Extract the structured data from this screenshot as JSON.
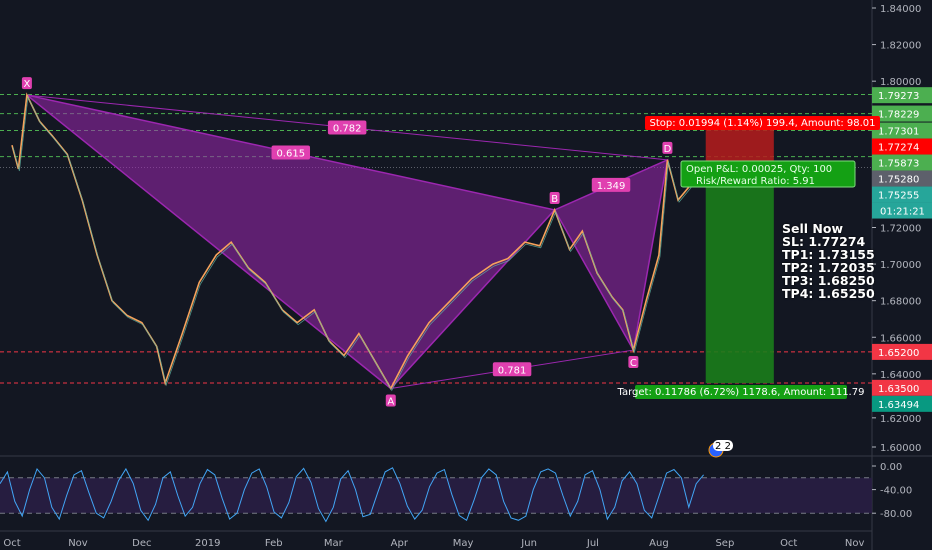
{
  "chart_data": {
    "type": "line",
    "symbol_note": "",
    "price_axis": {
      "ylim": [
        1.59,
        1.845
      ],
      "ticks": [
        "1.84000",
        "1.82000",
        "1.80000",
        "1.72000",
        "1.70000",
        "1.68000",
        "1.66000",
        "1.64000",
        "1.62000",
        "1.60000"
      ]
    },
    "x_ticks": [
      {
        "label": "Oct",
        "date": "2018-10-01"
      },
      {
        "label": "Nov",
        "date": "2018-11-01"
      },
      {
        "label": "Dec",
        "date": "2018-12-01"
      },
      {
        "label": "2019",
        "date": "2019-01-01"
      },
      {
        "label": "Feb",
        "date": "2019-02-01"
      },
      {
        "label": "Mar",
        "date": "2019-03-01"
      },
      {
        "label": "Apr",
        "date": "2019-04-01"
      },
      {
        "label": "May",
        "date": "2019-05-01"
      },
      {
        "label": "Jun",
        "date": "2019-06-01"
      },
      {
        "label": "Jul",
        "date": "2019-07-01"
      },
      {
        "label": "Aug",
        "date": "2019-08-01"
      },
      {
        "label": "Sep",
        "date": "2019-09-01"
      },
      {
        "label": "Oct",
        "date": "2019-10-01"
      },
      {
        "label": "Nov",
        "date": "2019-11-01"
      }
    ],
    "price_series": [
      [
        "2018-10-01",
        1.765
      ],
      [
        "2018-10-04",
        1.752
      ],
      [
        "2018-10-08",
        1.7924
      ],
      [
        "2018-10-14",
        1.778
      ],
      [
        "2018-10-20",
        1.77
      ],
      [
        "2018-10-27",
        1.76
      ],
      [
        "2018-11-03",
        1.735
      ],
      [
        "2018-11-10",
        1.705
      ],
      [
        "2018-11-17",
        1.68
      ],
      [
        "2018-11-24",
        1.672
      ],
      [
        "2018-12-01",
        1.668
      ],
      [
        "2018-12-08",
        1.655
      ],
      [
        "2018-12-12",
        1.635
      ],
      [
        "2018-12-20",
        1.662
      ],
      [
        "2018-12-28",
        1.69
      ],
      [
        "2019-01-05",
        1.705
      ],
      [
        "2019-01-12",
        1.712
      ],
      [
        "2019-01-20",
        1.698
      ],
      [
        "2019-01-28",
        1.69
      ],
      [
        "2019-02-05",
        1.675
      ],
      [
        "2019-02-12",
        1.668
      ],
      [
        "2019-02-20",
        1.675
      ],
      [
        "2019-02-27",
        1.658
      ],
      [
        "2019-03-06",
        1.65
      ],
      [
        "2019-03-13",
        1.662
      ],
      [
        "2019-03-20",
        1.648
      ],
      [
        "2019-03-28",
        1.632
      ],
      [
        "2019-04-05",
        1.65
      ],
      [
        "2019-04-15",
        1.668
      ],
      [
        "2019-04-25",
        1.68
      ],
      [
        "2019-05-05",
        1.692
      ],
      [
        "2019-05-15",
        1.7
      ],
      [
        "2019-05-22",
        1.703
      ],
      [
        "2019-05-30",
        1.712
      ],
      [
        "2019-06-06",
        1.71
      ],
      [
        "2019-06-13",
        1.7296
      ],
      [
        "2019-06-20",
        1.708
      ],
      [
        "2019-06-26",
        1.718
      ],
      [
        "2019-07-03",
        1.695
      ],
      [
        "2019-07-10",
        1.682
      ],
      [
        "2019-07-15",
        1.675
      ],
      [
        "2019-07-20",
        1.653
      ],
      [
        "2019-07-26",
        1.68
      ],
      [
        "2019-08-01",
        1.705
      ],
      [
        "2019-08-05",
        1.757
      ],
      [
        "2019-08-10",
        1.735
      ],
      [
        "2019-08-15",
        1.742
      ],
      [
        "2019-08-22",
        1.7525
      ]
    ],
    "pattern": {
      "points": [
        {
          "label": "X",
          "date": "2018-10-08",
          "price": 1.7924
        },
        {
          "label": "A",
          "date": "2019-03-28",
          "price": 1.632
        },
        {
          "label": "B",
          "date": "2019-06-13",
          "price": 1.7296
        },
        {
          "label": "C",
          "date": "2019-07-20",
          "price": 1.653
        },
        {
          "label": "D",
          "date": "2019-08-05",
          "price": 1.757
        }
      ],
      "ratios": {
        "XB": "0.615",
        "XD": "0.782",
        "BD": "1.349",
        "AC": "0.781"
      },
      "color": "#9c27b0",
      "label_color": "#e040b0"
    },
    "levels": [
      {
        "price": 1.79273,
        "label": "1.79273",
        "color": "#4caf50",
        "style": "dashed"
      },
      {
        "price": 1.78229,
        "label": "1.78229",
        "color": "#4caf50",
        "style": "dashed"
      },
      {
        "price": 1.77301,
        "label": "1.77301",
        "color": "#4caf50",
        "style": "dashed"
      },
      {
        "price": 1.77274,
        "label": "1.77274",
        "color": "#ff0000",
        "style": "none"
      },
      {
        "price": 1.75873,
        "label": "1.75873",
        "color": "#4caf50",
        "style": "dashed"
      },
      {
        "price": 1.7528,
        "label": "1.75280",
        "color": "#5d606b",
        "style": "dotted"
      },
      {
        "price": 1.652,
        "label": "1.65200",
        "color": "#f23645",
        "style": "dashed"
      },
      {
        "price": 1.635,
        "label": "1.63500",
        "color": "#f23645",
        "style": "dashed"
      },
      {
        "price": 1.63494,
        "label": "1.63494",
        "color": "#089981",
        "style": "none"
      }
    ],
    "last_price": {
      "label": "1.75255",
      "countdown": "01:21:21",
      "color": "#26a69a"
    },
    "position": {
      "start": "2019-08-23",
      "end": "2019-09-24",
      "entry": 1.7528,
      "stop": 1.77274,
      "target": 1.63494,
      "stop_top": 1.7733,
      "stop_label": "Stop: 0.01994 (1.14%) 199.4, Amount: 98.01",
      "target_label": "Target: 0.11786 (6.72%) 1178.6, Amount: 111.79",
      "pnl_label": "Open P&L: 0.00025, Qty: 100",
      "rr_label": "Risk/Reward Ratio: 5.91",
      "stop_color": "#b71c1c",
      "target_color": "#1b7d1b"
    },
    "info_text": [
      "Sell Now",
      "SL: 1.77274",
      "TP1: 1.73155",
      "TP2: 1.72035",
      "TP3: 1.68250",
      "TP4: 1.65250"
    ],
    "oscillator": {
      "ticks": [
        "0.00",
        "-40.00",
        "-80.00"
      ],
      "ylim": [
        -100,
        0
      ],
      "bands": [
        -20,
        -80
      ],
      "values": [
        -30,
        -10,
        -60,
        -85,
        -40,
        -5,
        -20,
        -70,
        -90,
        -50,
        -15,
        -8,
        -45,
        -80,
        -88,
        -60,
        -25,
        -5,
        -30,
        -75,
        -92,
        -65,
        -20,
        -10,
        -50,
        -85,
        -70,
        -30,
        -6,
        -15,
        -55,
        -90,
        -80,
        -40,
        -12,
        -5,
        -35,
        -78,
        -88,
        -62,
        -18,
        -4,
        -28,
        -72,
        -94,
        -70,
        -22,
        -8,
        -40,
        -86,
        -82,
        -45,
        -10,
        -3,
        -30,
        -68,
        -90,
        -75,
        -35,
        -12,
        -6,
        -48,
        -84,
        -92,
        -58,
        -20,
        -5,
        -15,
        -60,
        -88,
        -92,
        -85,
        -40,
        -10,
        -5,
        -12,
        -50,
        -85,
        -60,
        -15,
        -8,
        -40,
        -90,
        -70,
        -25,
        -10,
        -30,
        -75,
        -88,
        -50,
        -12,
        -6,
        -20,
        -70,
        -30,
        -15
      ],
      "line_color": "#42a5f5"
    },
    "event_badge": "2 2"
  }
}
